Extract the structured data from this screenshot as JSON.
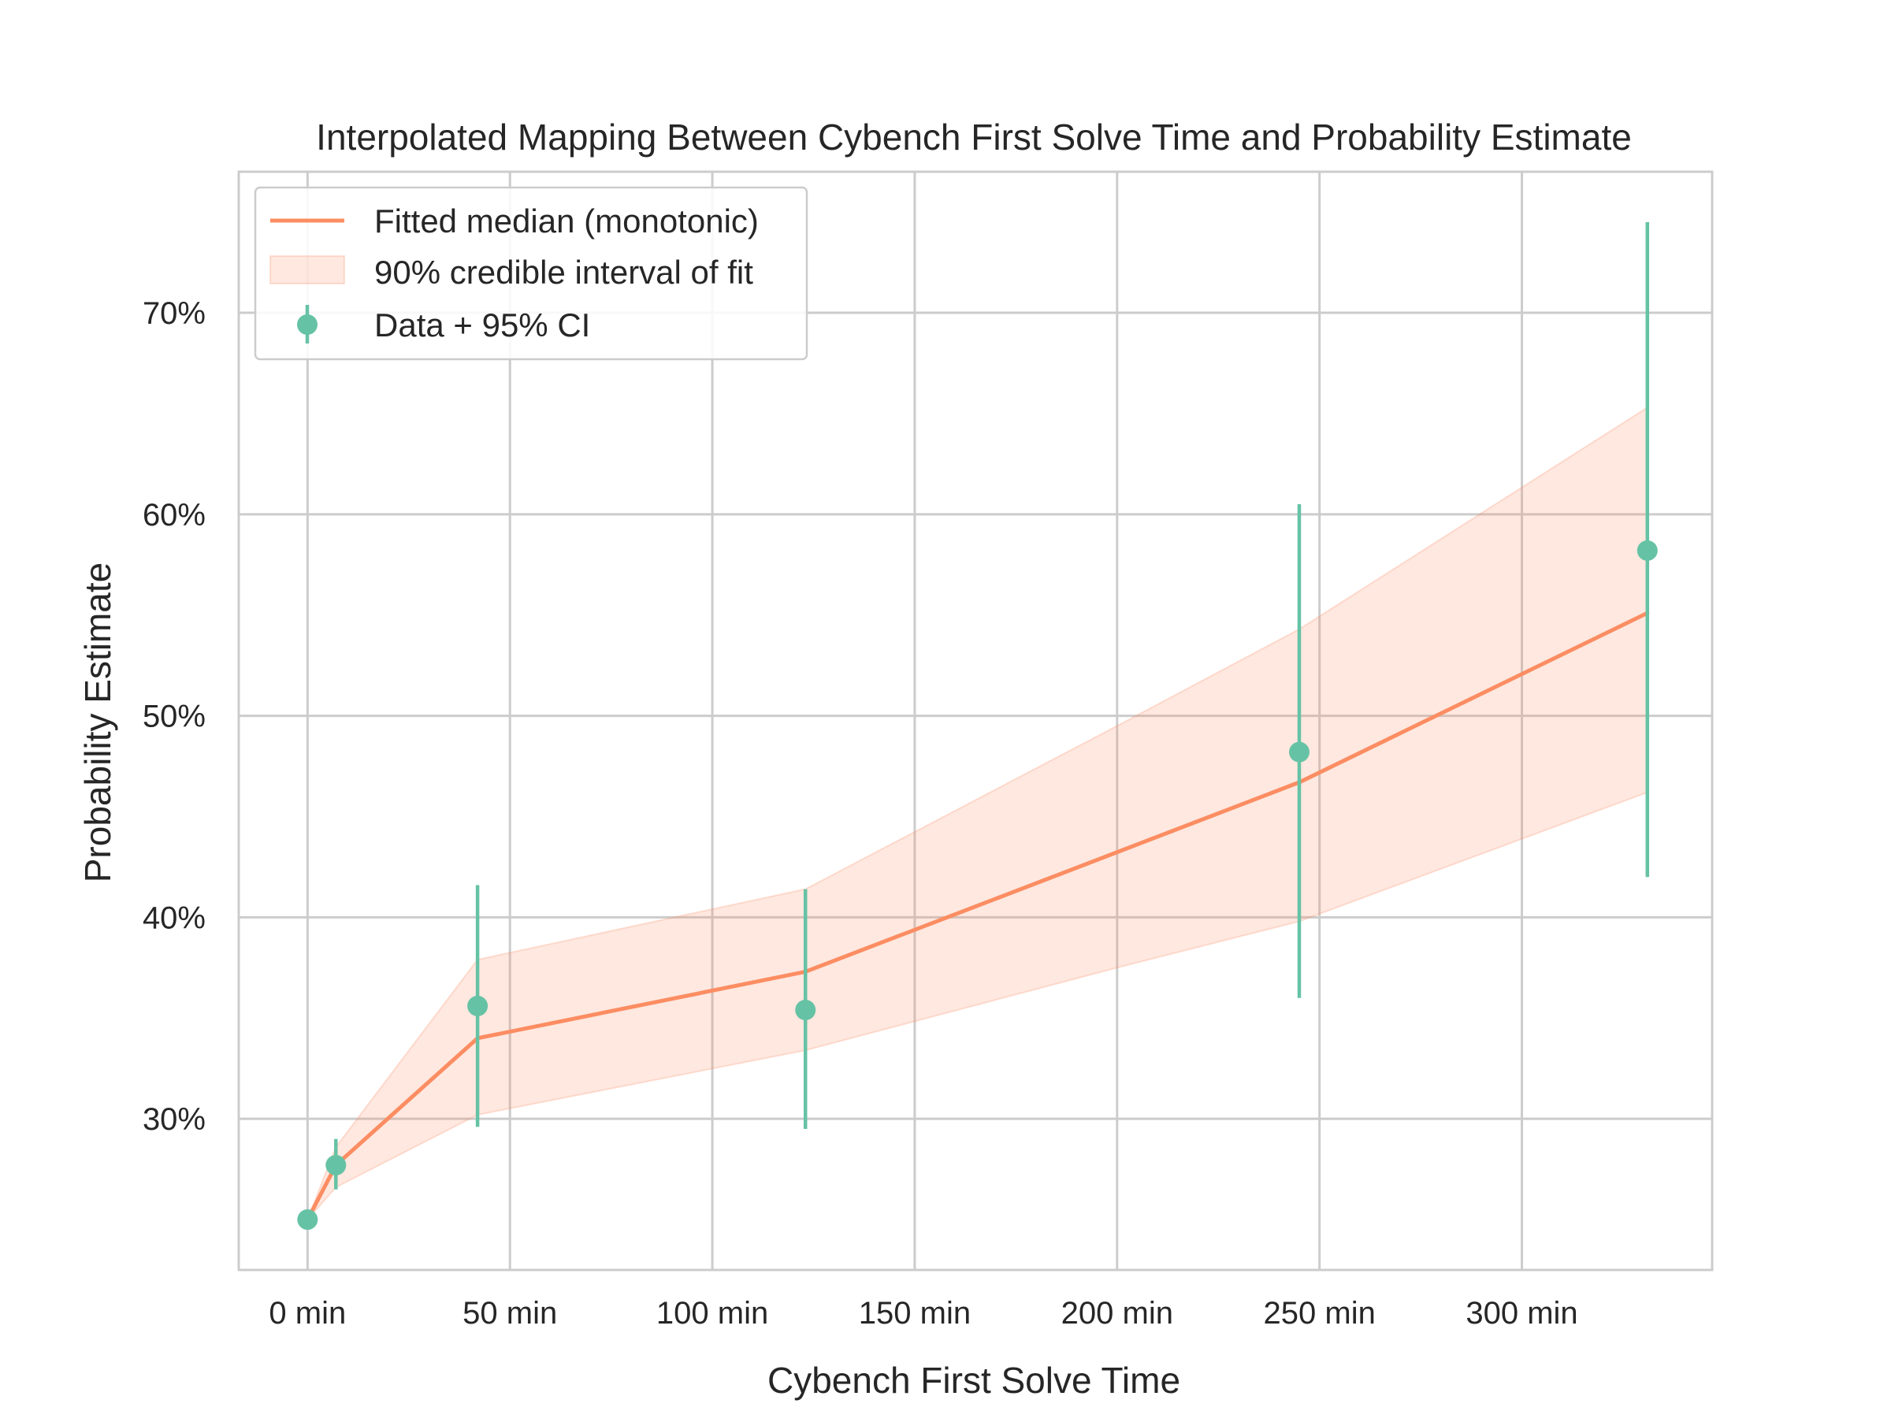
{
  "chart_data": {
    "type": "line",
    "title": "Interpolated Mapping Between Cybench First Solve Time and Probability Estimate",
    "xlabel": "Cybench First Solve Time",
    "ylabel": "Probability Estimate",
    "xlim": [
      -17,
      347
    ],
    "ylim": [
      22.5,
      77
    ],
    "x_ticks": [
      0,
      50,
      100,
      150,
      200,
      250,
      300
    ],
    "x_tick_labels": [
      "0 min",
      "50 min",
      "100 min",
      "150 min",
      "200 min",
      "250 min",
      "300 min"
    ],
    "y_ticks": [
      30,
      40,
      50,
      60,
      70
    ],
    "y_tick_labels": [
      "30%",
      "40%",
      "50%",
      "60%",
      "70%"
    ],
    "grid": true,
    "legend_position": "top-left",
    "legend": [
      "Fitted median (monotonic)",
      "90% credible interval of fit",
      "Data + 95% CI"
    ],
    "series": [
      {
        "name": "Fitted median (monotonic)",
        "kind": "line",
        "color": "#fc8d62",
        "x": [
          0,
          7,
          42,
          123,
          245,
          331
        ],
        "y": [
          25.0,
          27.7,
          34.0,
          37.3,
          46.7,
          55.1
        ]
      },
      {
        "name": "90% credible interval of fit",
        "kind": "band",
        "color": "#fc8d62",
        "x": [
          0,
          7,
          42,
          123,
          200,
          245,
          331
        ],
        "lower": [
          25.0,
          26.6,
          30.2,
          33.4,
          37.5,
          39.8,
          46.2
        ],
        "upper": [
          25.0,
          28.6,
          37.9,
          41.4,
          49.5,
          54.3,
          65.3
        ]
      },
      {
        "name": "Data + 95% CI",
        "kind": "errorbar",
        "color": "#66c2a5",
        "x": [
          0,
          7,
          42,
          123,
          245,
          331
        ],
        "y": [
          25.0,
          27.7,
          35.6,
          35.4,
          48.2,
          58.2
        ],
        "lower": [
          25.0,
          26.5,
          29.6,
          29.5,
          36.0,
          42.0
        ],
        "upper": [
          25.0,
          29.0,
          41.6,
          41.4,
          60.5,
          74.5
        ]
      }
    ]
  }
}
